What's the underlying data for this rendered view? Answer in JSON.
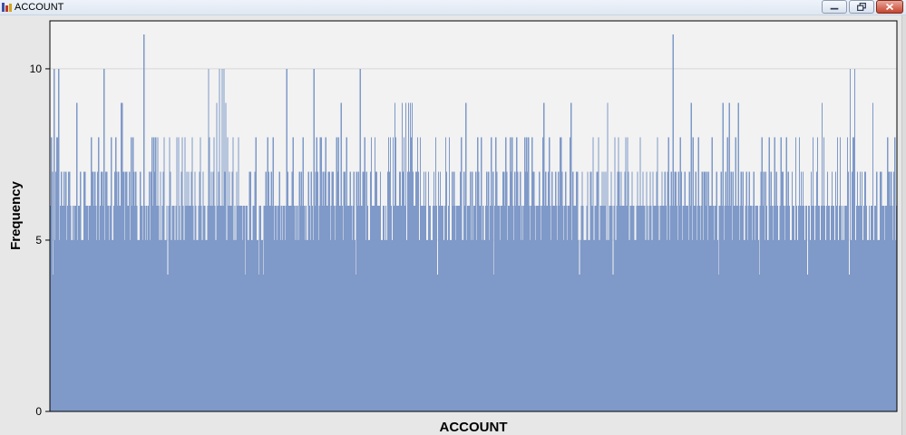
{
  "window": {
    "title": "ACCOUNT",
    "minimize_icon": "minimize-icon",
    "restore_icon": "restore-icon",
    "close_icon": "close-icon"
  },
  "colors": {
    "bar": "#7f99c8",
    "plot_bg": "#f2f2f2",
    "frame_bg": "#e7e7e7",
    "grid": "#d9d9d9"
  },
  "chart_data": {
    "type": "bar",
    "title": "",
    "xlabel": "ACCOUNT",
    "ylabel": "Frequency",
    "ylim": [
      0,
      11.4
    ],
    "yticks": [
      0,
      5,
      10
    ],
    "grid": "horizontal",
    "x_tick_labels": "none",
    "categories_count": 932,
    "values": [
      6,
      8,
      7,
      4,
      10,
      5,
      7,
      8,
      8,
      10,
      5,
      6,
      7,
      6,
      6,
      7,
      6,
      7,
      5,
      6,
      7,
      7,
      6,
      5,
      5,
      6,
      5,
      6,
      6,
      9,
      5,
      6,
      6,
      7,
      5,
      5,
      5,
      7,
      7,
      6,
      6,
      6,
      5,
      6,
      6,
      8,
      7,
      7,
      6,
      7,
      6,
      5,
      7,
      8,
      5,
      6,
      7,
      7,
      6,
      10,
      5,
      7,
      7,
      6,
      6,
      5,
      6,
      8,
      5,
      5,
      6,
      7,
      8,
      7,
      6,
      7,
      6,
      6,
      9,
      9,
      7,
      7,
      5,
      7,
      7,
      6,
      6,
      7,
      5,
      8,
      6,
      8,
      7,
      6,
      7,
      6,
      5,
      5,
      5,
      7,
      6,
      6,
      5,
      11,
      6,
      5,
      6,
      5,
      6,
      7,
      5,
      7,
      8,
      6,
      8,
      7,
      8,
      6,
      8,
      6,
      5,
      7,
      5,
      6,
      7,
      8,
      5,
      5,
      6,
      4,
      6,
      8,
      7,
      5,
      6,
      6,
      6,
      5,
      6,
      8,
      5,
      8,
      6,
      5,
      7,
      8,
      6,
      5,
      8,
      6,
      7,
      6,
      7,
      6,
      6,
      7,
      8,
      6,
      5,
      7,
      6,
      5,
      5,
      6,
      7,
      8,
      6,
      5,
      7,
      6,
      6,
      5,
      5,
      6,
      10,
      8,
      6,
      7,
      6,
      7,
      8,
      6,
      5,
      9,
      6,
      7,
      10,
      6,
      6,
      10,
      6,
      10,
      7,
      9,
      5,
      8,
      6,
      7,
      6,
      6,
      7,
      8,
      5,
      6,
      5,
      7,
      6,
      8,
      6,
      6,
      6,
      5,
      6,
      6,
      4,
      6,
      6,
      5,
      5,
      7,
      7,
      5,
      5,
      6,
      6,
      7,
      8,
      5,
      5,
      4,
      6,
      6,
      5,
      5,
      4,
      6,
      6,
      7,
      6,
      8,
      7,
      6,
      6,
      7,
      6,
      8,
      5,
      6,
      6,
      5,
      6,
      6,
      7,
      5,
      6,
      5,
      6,
      6,
      5,
      6,
      10,
      7,
      6,
      6,
      6,
      6,
      7,
      8,
      6,
      5,
      6,
      5,
      6,
      5,
      7,
      6,
      7,
      6,
      8,
      6,
      5,
      6,
      5,
      5,
      7,
      6,
      5,
      7,
      6,
      5,
      10,
      6,
      7,
      8,
      7,
      5,
      6,
      8,
      8,
      6,
      7,
      6,
      7,
      8,
      6,
      6,
      7,
      7,
      5,
      6,
      7,
      7,
      6,
      5,
      6,
      8,
      7,
      8,
      6,
      6,
      9,
      6,
      5,
      7,
      7,
      6,
      8,
      6,
      6,
      6,
      7,
      6,
      5,
      6,
      7,
      5,
      4,
      7,
      6,
      7,
      6,
      10,
      6,
      6,
      7,
      7,
      8,
      5,
      7,
      6,
      5,
      5,
      7,
      8,
      6,
      6,
      6,
      8,
      7,
      7,
      6,
      6,
      6,
      7,
      5,
      5,
      6,
      6,
      5,
      6,
      5,
      7,
      8,
      7,
      8,
      6,
      5,
      8,
      6,
      9,
      8,
      6,
      6,
      6,
      7,
      7,
      6,
      9,
      7,
      8,
      6,
      9,
      5,
      7,
      9,
      7,
      9,
      8,
      9,
      7,
      6,
      6,
      7,
      7,
      8,
      7,
      5,
      8,
      6,
      6,
      6,
      7,
      6,
      7,
      5,
      5,
      7,
      6,
      6,
      5,
      5,
      6,
      7,
      6,
      8,
      6,
      4,
      7,
      6,
      7,
      6,
      6,
      6,
      5,
      6,
      8,
      7,
      5,
      6,
      8,
      5,
      5,
      7,
      6,
      7,
      6,
      5,
      6,
      6,
      6,
      6,
      7,
      8,
      5,
      5,
      7,
      6,
      9,
      5,
      6,
      6,
      6,
      7,
      5,
      7,
      5,
      6,
      6,
      7,
      5,
      8,
      7,
      6,
      6,
      8,
      5,
      6,
      5,
      5,
      6,
      7,
      6,
      7,
      5,
      6,
      8,
      6,
      7,
      4,
      6,
      8,
      7,
      6,
      6,
      6,
      5,
      6,
      6,
      7,
      7,
      6,
      8,
      7,
      5,
      6,
      6,
      8,
      7,
      8,
      6,
      5,
      7,
      6,
      8,
      7,
      6,
      6,
      7,
      5,
      6,
      5,
      6,
      8,
      7,
      8,
      7,
      8,
      6,
      5,
      6,
      8,
      7,
      7,
      6,
      5,
      6,
      6,
      6,
      7,
      6,
      5,
      6,
      8,
      9,
      6,
      7,
      6,
      6,
      7,
      8,
      6,
      5,
      7,
      6,
      6,
      6,
      7,
      6,
      5,
      7,
      6,
      8,
      8,
      7,
      6,
      5,
      6,
      7,
      6,
      5,
      6,
      6,
      8,
      9,
      5,
      7,
      6,
      6,
      6,
      7,
      7,
      5,
      4,
      5,
      6,
      7,
      6,
      5,
      5,
      5,
      6,
      7,
      5,
      5,
      7,
      7,
      6,
      8,
      5,
      6,
      6,
      7,
      7,
      8,
      5,
      6,
      6,
      7,
      6,
      7,
      6,
      7,
      5,
      9,
      5,
      6,
      6,
      7,
      6,
      4,
      6,
      8,
      5,
      6,
      7,
      8,
      7,
      6,
      7,
      6,
      6,
      6,
      7,
      8,
      6,
      8,
      7,
      5,
      6,
      6,
      7,
      6,
      6,
      5,
      5,
      6,
      7,
      6,
      6,
      8,
      6,
      6,
      7,
      6,
      6,
      5,
      7,
      6,
      5,
      6,
      7,
      6,
      5,
      7,
      6,
      6,
      6,
      7,
      8,
      6,
      5,
      6,
      6,
      7,
      6,
      6,
      7,
      6,
      5,
      7,
      8,
      5,
      6,
      7,
      6,
      11,
      6,
      7,
      7,
      6,
      5,
      7,
      6,
      8,
      7,
      5,
      6,
      6,
      7,
      6,
      6,
      6,
      5,
      7,
      6,
      9,
      5,
      8,
      6,
      6,
      7,
      5,
      6,
      8,
      6,
      5,
      6,
      7,
      5,
      7,
      7,
      6,
      7,
      5,
      7,
      6,
      6,
      6,
      8,
      6,
      5,
      6,
      6,
      7,
      5,
      4,
      6,
      6,
      7,
      6,
      9,
      5,
      6,
      7,
      6,
      8,
      6,
      9,
      6,
      7,
      5,
      7,
      6,
      6,
      8,
      6,
      6,
      9,
      5,
      6,
      7,
      6,
      7,
      5,
      5,
      6,
      7,
      5,
      6,
      7,
      6,
      6,
      5,
      6,
      7,
      5,
      6,
      6,
      6,
      5,
      4,
      6,
      7,
      8,
      6,
      7,
      5,
      7,
      6,
      5,
      5,
      8,
      6,
      7,
      6,
      5,
      6,
      8,
      6,
      7,
      6,
      5,
      5,
      6,
      8,
      7,
      7,
      6,
      5,
      6,
      8,
      6,
      7,
      6,
      5,
      5,
      7,
      6,
      6,
      5,
      8,
      6,
      5,
      6,
      8,
      6,
      7,
      6,
      7,
      6,
      5,
      6,
      6,
      4,
      6,
      6,
      5,
      7,
      6,
      8,
      6,
      5,
      6,
      7,
      8,
      6,
      6,
      5,
      6,
      9,
      6,
      8,
      6,
      5,
      6,
      7,
      6,
      6,
      5,
      6,
      7,
      6,
      6,
      5,
      7,
      6,
      8,
      5,
      6,
      8,
      6,
      5,
      6,
      5,
      6,
      6
    ]
  }
}
